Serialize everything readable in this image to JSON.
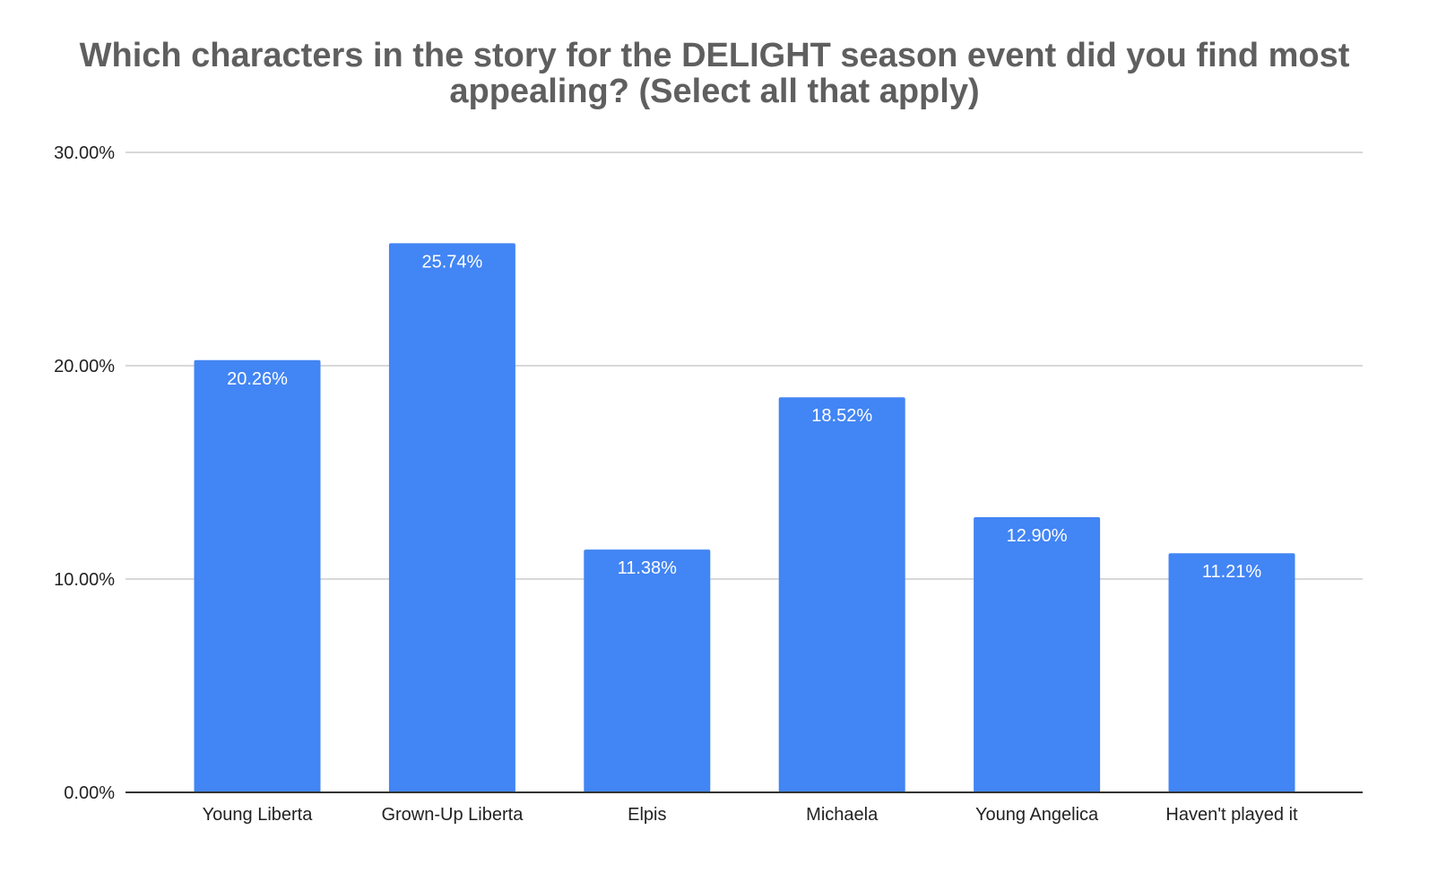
{
  "chart_data": {
    "type": "bar",
    "title": "Which characters in the story for the DELIGHT season event did you find most appealing? (Select all that apply)",
    "title_lines": [
      "Which characters in the story for the DELIGHT season event did you find most",
      "appealing? (Select all that apply)"
    ],
    "categories": [
      "Young Liberta",
      "Grown-Up Liberta",
      "Elpis",
      "Michaela",
      "Young Angelica",
      "Haven't played it"
    ],
    "values": [
      20.26,
      25.74,
      11.38,
      18.52,
      12.9,
      11.21
    ],
    "data_labels": [
      "20.26%",
      "25.74%",
      "11.38%",
      "18.52%",
      "12.90%",
      "11.21%"
    ],
    "ylim": [
      0,
      30
    ],
    "y_ticks": [
      0,
      10,
      20,
      30
    ],
    "y_tick_labels": [
      "0.00%",
      "10.00%",
      "20.00%",
      "30.00%"
    ],
    "xlabel": "",
    "ylabel": "",
    "grid": true,
    "legend": "none",
    "bar_color": "#4285f4",
    "title_color": "#5f5f5f"
  }
}
